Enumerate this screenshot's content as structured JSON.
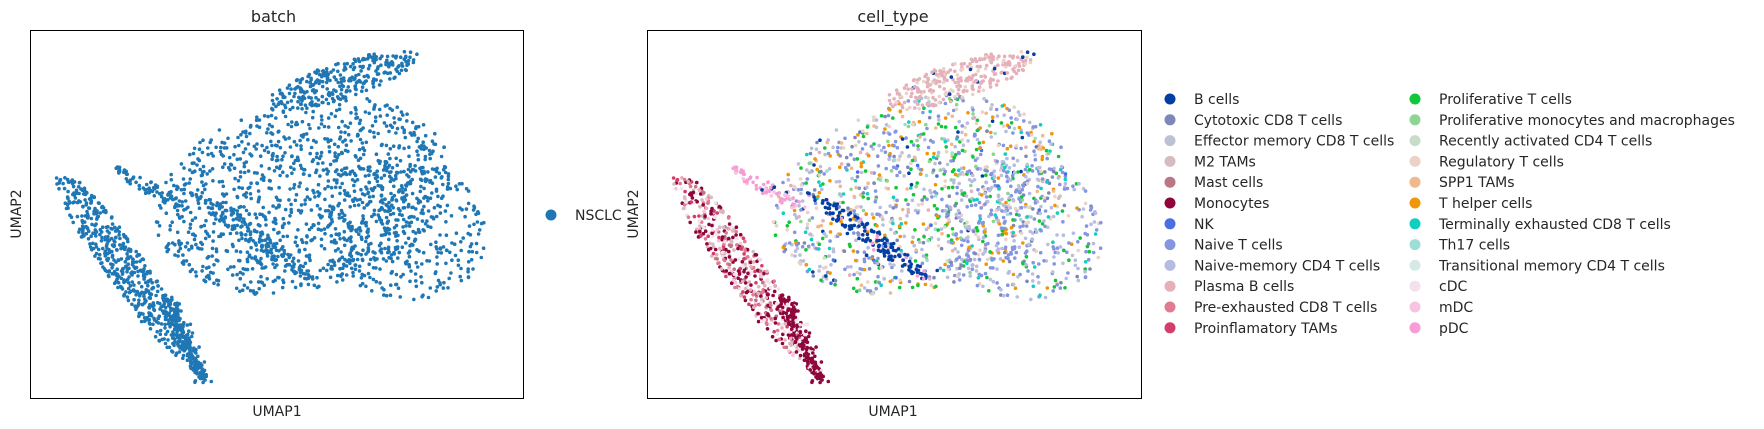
{
  "chart_data": [
    {
      "type": "scatter",
      "title": "batch",
      "xlabel": "UMAP1",
      "ylabel": "UMAP2",
      "xticks": [],
      "yticks": [],
      "grid": false,
      "legend_placement": "right",
      "series": [
        {
          "name": "NSCLC",
          "color": "#1f77b4"
        }
      ]
    },
    {
      "type": "scatter",
      "title": "cell_type",
      "xlabel": "UMAP1",
      "ylabel": "UMAP2",
      "xticks": [],
      "yticks": [],
      "grid": false,
      "legend_placement": "right, two columns",
      "series": [
        {
          "name": "B cells",
          "color": "#023fa5"
        },
        {
          "name": "Cytotoxic CD8 T cells",
          "color": "#7d87b9"
        },
        {
          "name": "Effector memory CD8 T cells",
          "color": "#bec1d4"
        },
        {
          "name": "M2 TAMs",
          "color": "#d6bcc0"
        },
        {
          "name": "Mast cells",
          "color": "#bb7784"
        },
        {
          "name": "Monocytes",
          "color": "#8e063b"
        },
        {
          "name": "NK",
          "color": "#4a6fe3"
        },
        {
          "name": "Naive T cells",
          "color": "#8595e1"
        },
        {
          "name": "Naive-memory CD4 T cells",
          "color": "#b5bbe3"
        },
        {
          "name": "Plasma B cells",
          "color": "#e6afb9"
        },
        {
          "name": "Pre-exhausted CD8 T cells",
          "color": "#e07b91"
        },
        {
          "name": "Proinflamatory TAMs",
          "color": "#d33f6a"
        },
        {
          "name": "Proliferative T cells",
          "color": "#11c638"
        },
        {
          "name": "Proliferative monocytes and macrophages",
          "color": "#8dd593"
        },
        {
          "name": "Recently activated CD4 T cells",
          "color": "#c6dec7"
        },
        {
          "name": "Regulatory T cells",
          "color": "#ead3c6"
        },
        {
          "name": "SPP1 TAMs",
          "color": "#f0b98d"
        },
        {
          "name": "T helper cells",
          "color": "#ef9708"
        },
        {
          "name": "Terminally exhausted CD8 T cells",
          "color": "#0fcfc0"
        },
        {
          "name": "Th17 cells",
          "color": "#9cded6"
        },
        {
          "name": "Transitional memory CD4 T cells",
          "color": "#d5eae7"
        },
        {
          "name": "cDC",
          "color": "#f3e1eb"
        },
        {
          "name": "mDC",
          "color": "#f6c4e1"
        },
        {
          "name": "pDC",
          "color": "#f79cd4"
        }
      ]
    }
  ]
}
